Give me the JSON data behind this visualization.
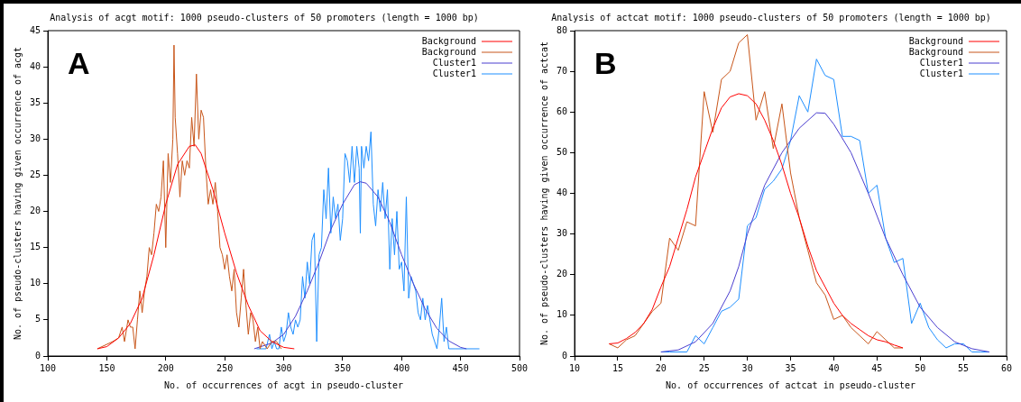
{
  "chart_data": [
    {
      "type": "line",
      "title": "Analysis of acgt motif: 1000 pseudo-clusters of 50 promoters (length = 1000 bp)",
      "xlabel": "No. of occurrences of acgt in pseudo-cluster",
      "ylabel": "No. of pseudo-clusters having given occurrence of acgt",
      "annotations": [
        "A"
      ],
      "xlim": [
        100,
        500
      ],
      "xticks": [
        100,
        150,
        200,
        250,
        300,
        350,
        400,
        450,
        500
      ],
      "ylim": [
        0,
        45
      ],
      "yticks": [
        0,
        5,
        10,
        15,
        20,
        25,
        30,
        35,
        40,
        45
      ],
      "grid": false,
      "legend": "top right",
      "marker": "none",
      "line_style": "solid",
      "series": [
        {
          "name": "Background",
          "color": "#ff0000",
          "x": [
            142,
            150,
            160,
            170,
            180,
            190,
            200,
            210,
            220,
            225,
            230,
            240,
            250,
            260,
            270,
            280,
            290,
            300,
            309
          ],
          "values": [
            1,
            1.3,
            2.5,
            4.5,
            8,
            14,
            21,
            26.5,
            29,
            29.2,
            28,
            23,
            17,
            11.5,
            7,
            3.5,
            2,
            1.2,
            1
          ]
        },
        {
          "name": "Background",
          "color": "#c8561a",
          "x": [
            142,
            155,
            160,
            163,
            165,
            168,
            170,
            172,
            174,
            176,
            178,
            180,
            182,
            184,
            186,
            188,
            190,
            192,
            194,
            196,
            198,
            200,
            202,
            204,
            206,
            207,
            208,
            210,
            212,
            214,
            216,
            218,
            220,
            222,
            224,
            226,
            228,
            230,
            232,
            234,
            236,
            238,
            240,
            242,
            244,
            246,
            248,
            250,
            252,
            254,
            256,
            258,
            260,
            262,
            264,
            266,
            268,
            270,
            272,
            274,
            276,
            278,
            280,
            282,
            286,
            290,
            294,
            298
          ],
          "values": [
            1,
            2,
            2.5,
            4,
            2,
            5,
            4,
            4,
            1,
            5,
            9,
            6,
            9,
            11,
            15,
            14,
            17,
            21,
            20,
            22,
            27,
            15,
            28,
            24,
            30,
            43,
            33,
            28,
            22,
            27,
            25,
            27,
            26,
            33,
            29,
            39,
            30,
            34,
            33,
            26,
            21,
            23,
            21,
            24,
            20,
            15,
            14,
            12,
            14,
            11,
            9,
            12,
            6,
            4,
            8,
            12,
            7,
            3,
            6,
            5,
            2,
            4,
            1,
            2,
            1,
            2,
            2,
            1
          ]
        },
        {
          "name": "Cluster1",
          "color": "#4b3fd0",
          "x": [
            275,
            290,
            300,
            310,
            320,
            330,
            340,
            350,
            360,
            365,
            370,
            380,
            390,
            400,
            410,
            420,
            430,
            440,
            450,
            455
          ],
          "values": [
            1,
            1.8,
            3,
            5.5,
            9,
            13,
            17.5,
            21,
            23.7,
            24.1,
            23.9,
            22,
            18.5,
            14,
            10,
            6.5,
            3.8,
            2.1,
            1.2,
            1
          ]
        },
        {
          "name": "Cluster1",
          "color": "#1e8fff",
          "x": [
            277,
            285,
            288,
            290,
            292,
            294,
            296,
            298,
            300,
            302,
            304,
            306,
            308,
            310,
            312,
            314,
            316,
            318,
            320,
            322,
            324,
            326,
            328,
            330,
            332,
            334,
            336,
            338,
            340,
            342,
            344,
            346,
            348,
            350,
            352,
            354,
            356,
            358,
            360,
            362,
            364,
            365,
            366,
            368,
            370,
            372,
            374,
            376,
            378,
            380,
            382,
            384,
            386,
            388,
            390,
            392,
            394,
            396,
            398,
            400,
            402,
            404,
            406,
            408,
            410,
            412,
            414,
            416,
            418,
            420,
            422,
            424,
            426,
            428,
            430,
            432,
            434,
            436,
            438,
            440,
            445,
            452,
            466
          ],
          "values": [
            1,
            1,
            3,
            1,
            2,
            1,
            1,
            4,
            2,
            3,
            6,
            4,
            3,
            5,
            4,
            5,
            11,
            8,
            13,
            10,
            16,
            17,
            2,
            14,
            15,
            23,
            19,
            26,
            17,
            22,
            19,
            21,
            16,
            19,
            28,
            27,
            24,
            29,
            24,
            29,
            26,
            17,
            29,
            26,
            29,
            27,
            31,
            21,
            18,
            23,
            20,
            24,
            19,
            23,
            12,
            19,
            14,
            20,
            12,
            13,
            9,
            22,
            8,
            11,
            10,
            9,
            6,
            5,
            8,
            5,
            7,
            5,
            3,
            2,
            1,
            4,
            8,
            2,
            4,
            1,
            1,
            1,
            1
          ]
        }
      ]
    },
    {
      "type": "line",
      "title": "Analysis of actcat motif: 1000 pseudo-clusters of 50 promoters (length = 1000 bp)",
      "xlabel": "No. of occurrences of actcat in pseudo-cluster",
      "ylabel": "No. of pseudo-clusters having given occurrence of actcat",
      "annotations": [
        "B"
      ],
      "xlim": [
        10,
        60
      ],
      "xticks": [
        10,
        15,
        20,
        25,
        30,
        35,
        40,
        45,
        50,
        55,
        60
      ],
      "ylim": [
        0,
        80
      ],
      "yticks": [
        0,
        10,
        20,
        30,
        40,
        50,
        60,
        70,
        80
      ],
      "grid": false,
      "legend": "top right",
      "marker": "none",
      "line_style": "solid",
      "series": [
        {
          "name": "Background",
          "color": "#ff0000",
          "x": [
            14,
            15,
            16,
            17,
            18,
            19,
            20,
            21,
            22,
            23,
            24,
            25,
            26,
            27,
            28,
            29,
            30,
            31,
            32,
            33,
            34,
            35,
            36,
            37,
            38,
            39,
            40,
            41,
            42,
            43,
            44,
            45,
            46,
            47,
            48
          ],
          "values": [
            3,
            3.2,
            4.3,
            5.8,
            8,
            11.5,
            17,
            22,
            29,
            36,
            44,
            50,
            56,
            61,
            63.7,
            64.5,
            64,
            62,
            58,
            53,
            47,
            40,
            34,
            27,
            21,
            17,
            13,
            10,
            8,
            6.5,
            5,
            4,
            3.5,
            2.7,
            2
          ]
        },
        {
          "name": "Background",
          "color": "#c8561a",
          "x": [
            14,
            15,
            16,
            17,
            18,
            19,
            20,
            21,
            22,
            23,
            24,
            25,
            26,
            27,
            28,
            29,
            30,
            31,
            32,
            33,
            34,
            35,
            36,
            37,
            38,
            39,
            40,
            41,
            42,
            43,
            44,
            45,
            46,
            47,
            48
          ],
          "values": [
            3,
            2,
            4,
            5,
            8,
            11,
            13,
            29,
            26,
            33,
            32,
            65,
            55,
            68,
            70,
            77,
            79,
            58,
            65,
            51,
            62,
            45,
            34,
            26,
            18,
            15,
            9,
            10,
            7,
            5,
            3,
            6,
            4,
            2,
            2
          ]
        },
        {
          "name": "Cluster1",
          "color": "#4b3fd0",
          "x": [
            20,
            22,
            24,
            26,
            28,
            29,
            30,
            32,
            34,
            36,
            38,
            39,
            40,
            42,
            44,
            46,
            48,
            50,
            52,
            54,
            56,
            58
          ],
          "values": [
            1,
            1.5,
            3.5,
            8,
            16,
            22,
            30,
            42,
            50,
            56,
            59.8,
            59.7,
            57,
            50,
            40,
            29,
            20,
            12,
            7,
            3.5,
            1.8,
            1
          ]
        },
        {
          "name": "Cluster1",
          "color": "#1e8fff",
          "x": [
            20,
            21,
            22,
            23,
            24,
            25,
            26,
            27,
            28,
            29,
            30,
            31,
            32,
            33,
            34,
            35,
            36,
            37,
            38,
            39,
            40,
            41,
            42,
            43,
            44,
            45,
            46,
            47,
            48,
            49,
            50,
            51,
            52,
            53,
            54,
            55,
            56,
            57,
            58
          ],
          "values": [
            1,
            1,
            1,
            1,
            5,
            3,
            7,
            11,
            12,
            14,
            32,
            34,
            41,
            43,
            46,
            53,
            64,
            60,
            73,
            69,
            68,
            54,
            54,
            53,
            40,
            42,
            29,
            23,
            24,
            8,
            13,
            7,
            4,
            2,
            3,
            3,
            1,
            1,
            1
          ]
        }
      ]
    }
  ]
}
